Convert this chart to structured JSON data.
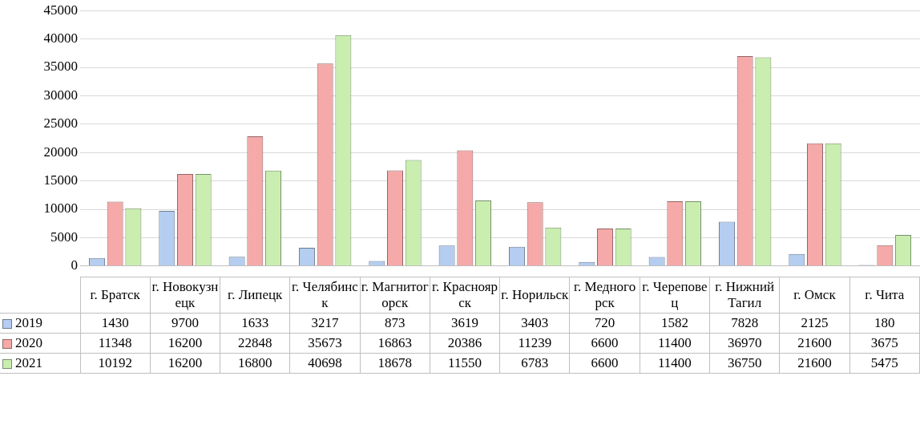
{
  "chart_data": {
    "type": "bar",
    "categories": [
      "г. Братск",
      "г. Новокузнецк",
      "г. Липецк",
      "г. Челябинск",
      "г. Магнитогорск",
      "г. Красноярск",
      "г. Норильск",
      "г. Медногорск",
      "г. Череповец",
      "г. Нижний Тагил",
      "г. Омск",
      "г. Чита"
    ],
    "series": [
      {
        "name": "2019",
        "color": "#b4cdf0",
        "values": [
          1430,
          9700,
          1633,
          3217,
          873,
          3619,
          3403,
          720,
          1582,
          7828,
          2125,
          180
        ]
      },
      {
        "name": "2020",
        "color": "#f5a9a9",
        "values": [
          11348,
          16200,
          22848,
          35673,
          16863,
          20386,
          11239,
          6600,
          11400,
          36970,
          21600,
          3675
        ]
      },
      {
        "name": "2021",
        "color": "#c9eeb0",
        "values": [
          10192,
          16200,
          16800,
          40698,
          18678,
          11550,
          6783,
          6600,
          11400,
          36750,
          21600,
          5475
        ]
      }
    ],
    "ylim": [
      0,
      45000
    ],
    "yticks": [
      0,
      5000,
      10000,
      15000,
      20000,
      25000,
      30000,
      35000,
      40000,
      45000
    ],
    "grid": "y",
    "legend": "bottom",
    "data_labels": true
  }
}
